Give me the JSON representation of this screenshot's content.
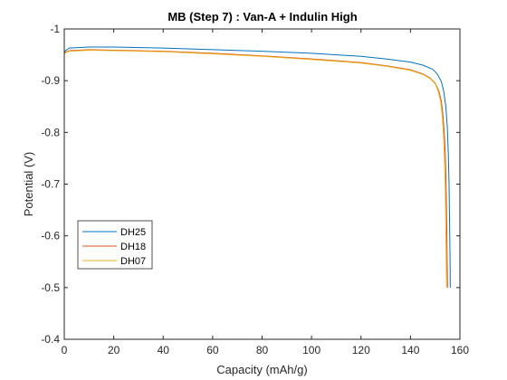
{
  "chart_data": {
    "type": "line",
    "title": "MB (Step 7) : Van-A + Indulin High",
    "xlabel": "Capacity (mAh/g)",
    "ylabel": "Potential (V)",
    "xlim": [
      0,
      160
    ],
    "ylim": [
      -1,
      -0.4
    ],
    "y_direction": "reversed",
    "xticks": [
      0,
      20,
      40,
      60,
      80,
      100,
      120,
      140,
      160
    ],
    "yticks": [
      -1,
      -0.9,
      -0.8,
      -0.7,
      -0.6,
      -0.5,
      -0.4
    ],
    "xtick_labels": [
      "0",
      "20",
      "40",
      "60",
      "80",
      "100",
      "120",
      "140",
      "160"
    ],
    "ytick_labels": [
      "-1",
      "-0.9",
      "-0.8",
      "-0.7",
      "-0.6",
      "-0.5",
      "-0.4"
    ],
    "grid": false,
    "legend_position": "lower-left",
    "series": [
      {
        "name": "DH25",
        "color": "#0072bd",
        "x": [
          0,
          0.5,
          2,
          10,
          20,
          40,
          60,
          80,
          100,
          120,
          130,
          140,
          145,
          149,
          151,
          152.5,
          153.5,
          154.3,
          154.9,
          155.3,
          155.6,
          155.8,
          156,
          156.1
        ],
        "y": [
          -0.955,
          -0.958,
          -0.963,
          -0.965,
          -0.965,
          -0.963,
          -0.96,
          -0.957,
          -0.953,
          -0.947,
          -0.942,
          -0.936,
          -0.93,
          -0.922,
          -0.912,
          -0.898,
          -0.878,
          -0.85,
          -0.81,
          -0.76,
          -0.7,
          -0.63,
          -0.56,
          -0.5
        ]
      },
      {
        "name": "DH18",
        "color": "#d95319",
        "x": [
          0,
          0.5,
          2,
          10,
          20,
          40,
          60,
          80,
          100,
          120,
          130,
          140,
          145,
          148,
          150,
          151.5,
          152.5,
          153.2,
          153.8,
          154.2,
          154.5,
          154.7,
          154.85,
          155
        ],
        "y": [
          -0.952,
          -0.955,
          -0.958,
          -0.96,
          -0.959,
          -0.957,
          -0.953,
          -0.948,
          -0.942,
          -0.935,
          -0.929,
          -0.921,
          -0.913,
          -0.905,
          -0.895,
          -0.88,
          -0.86,
          -0.83,
          -0.79,
          -0.74,
          -0.68,
          -0.61,
          -0.55,
          -0.5
        ]
      },
      {
        "name": "DH07",
        "color": "#edb120",
        "x": [
          0,
          0.5,
          2,
          10,
          20,
          40,
          60,
          80,
          100,
          120,
          130,
          140,
          145,
          148,
          150,
          151.2,
          152.2,
          152.9,
          153.4,
          153.8,
          154.1,
          154.3,
          154.45,
          154.6
        ],
        "y": [
          -0.951,
          -0.954,
          -0.957,
          -0.959,
          -0.958,
          -0.956,
          -0.952,
          -0.947,
          -0.941,
          -0.934,
          -0.928,
          -0.92,
          -0.912,
          -0.904,
          -0.894,
          -0.88,
          -0.86,
          -0.83,
          -0.79,
          -0.74,
          -0.68,
          -0.61,
          -0.55,
          -0.5
        ]
      }
    ]
  }
}
